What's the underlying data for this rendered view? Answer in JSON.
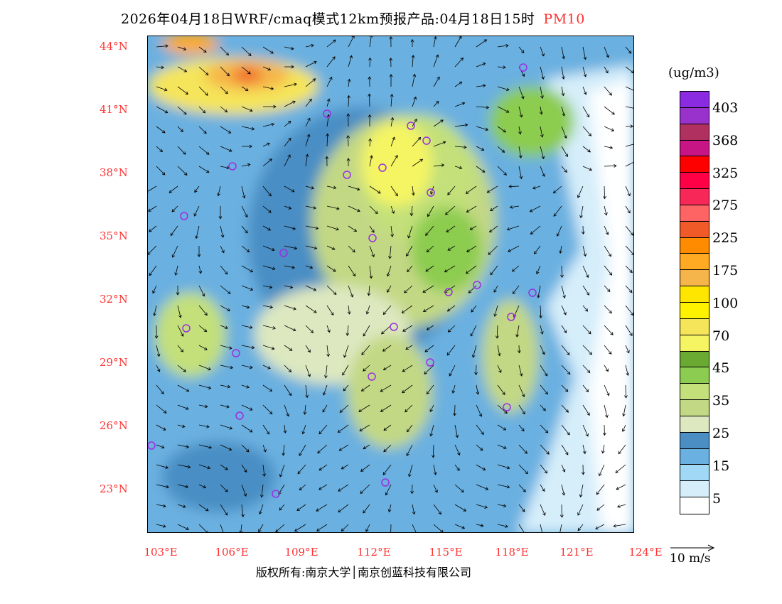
{
  "title": {
    "main": "2026年04月18日WRF/cmaq模式12km预报产品:04月18日15时",
    "species": "PM10"
  },
  "lat_labels": [
    "44°N",
    "41°N",
    "38°N",
    "35°N",
    "32°N",
    "29°N",
    "26°N",
    "23°N"
  ],
  "lon_labels": [
    "103°E",
    "106°E",
    "109°E",
    "112°E",
    "115°E",
    "118°E",
    "121°E",
    "124°E"
  ],
  "colorbar": {
    "unit": "(ug/m3)",
    "labels": [
      "403",
      "368",
      "325",
      "275",
      "225",
      "175",
      "100",
      "70",
      "45",
      "35",
      "25",
      "15",
      "5"
    ],
    "colors": [
      "#8a2be2",
      "#9932cc",
      "#b03060",
      "#c71585",
      "#ff0000",
      "#ff0046",
      "#f72858",
      "#ff6464",
      "#f05a28",
      "#ff8c00",
      "#ffaa22",
      "#f5b54a",
      "#ffe600",
      "#fff200",
      "#f5e55a",
      "#f5f564",
      "#6aaa32",
      "#8ccc50",
      "#c3e07a",
      "#c3d884",
      "#dde8c0",
      "#4a8ec4",
      "#6ab0e0",
      "#a0d8f5",
      "#d6eefa",
      "#ffffff"
    ]
  },
  "wind_reference": {
    "label": "10 m/s"
  },
  "copyright": "版权所有:南京大学│南京创蓝科技有限公司",
  "station_color": "#9a30e0"
}
